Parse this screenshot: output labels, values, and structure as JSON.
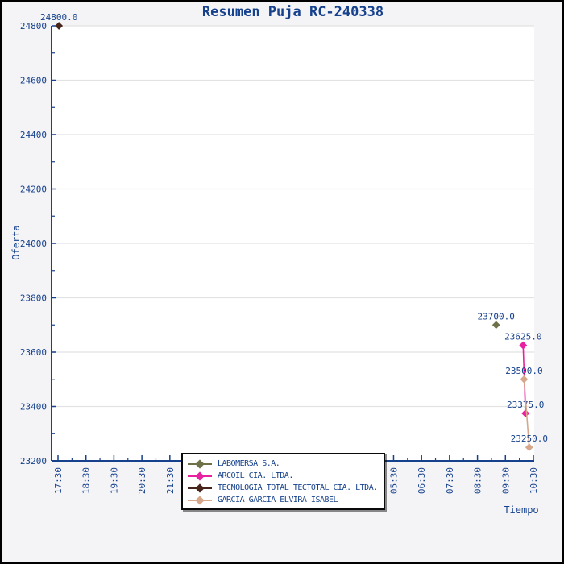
{
  "figure": {
    "title": "Resumen Puja RC-240338"
  },
  "colors": {
    "text": "#16418c",
    "axis": "#16418c",
    "grid": "#e2e2e2",
    "figure_bg": "#f4f4f7",
    "plot_bg": "#ffffff",
    "legend_border": "#0a0a0a",
    "legend_bg": "#ffffff"
  },
  "chart_data": {
    "type": "scatter",
    "title": "Resumen Puja RC-240338",
    "xlabel": "Tiempo",
    "ylabel": "Oferta",
    "ylim": [
      23200,
      24800
    ],
    "y_ticks": [
      24800,
      24600,
      24400,
      24200,
      24000,
      23800,
      23600,
      23400,
      23200
    ],
    "x_ticks": [
      "17:30",
      "18:30",
      "19:30",
      "20:30",
      "21:30",
      "22:30",
      "23:30",
      "00:30",
      "01:30",
      "02:30",
      "03:30",
      "04:30",
      "05:30",
      "06:30",
      "07:30",
      "08:30",
      "09:30",
      "10:30"
    ],
    "grid": "horizontal",
    "legend_position": "bottom-center-overlapping-axis",
    "marker": "diamond",
    "annotation_format": "value-one-decimal",
    "series": [
      {
        "name": "LABOMERSA S.A.",
        "color": "#6f7148",
        "points": [
          {
            "time": "09:10",
            "value": 23700.0,
            "label": "23700.0"
          }
        ]
      },
      {
        "name": "ARCOIL CIA. LTDA.",
        "color": "#e8219f",
        "points": [
          {
            "time": "10:08",
            "value": 23625.0,
            "label": "23625.0"
          },
          {
            "time": "10:13",
            "value": 23375.0,
            "label": "23375.0"
          }
        ]
      },
      {
        "name": "TECNOLOGIA TOTAL TECTOTAL CIA. LTDA.",
        "color": "#47251a",
        "points": [
          {
            "time": "17:32",
            "value": 24800.0,
            "label": "24800.0"
          }
        ]
      },
      {
        "name": "GARCIA GARCIA ELVIRA ISABEL",
        "color": "#d7a78c",
        "points": [
          {
            "time": "10:10",
            "value": 23500.0,
            "label": "23500.0"
          },
          {
            "time": "10:21",
            "value": 23250.0,
            "label": "23250.0"
          }
        ]
      }
    ]
  }
}
